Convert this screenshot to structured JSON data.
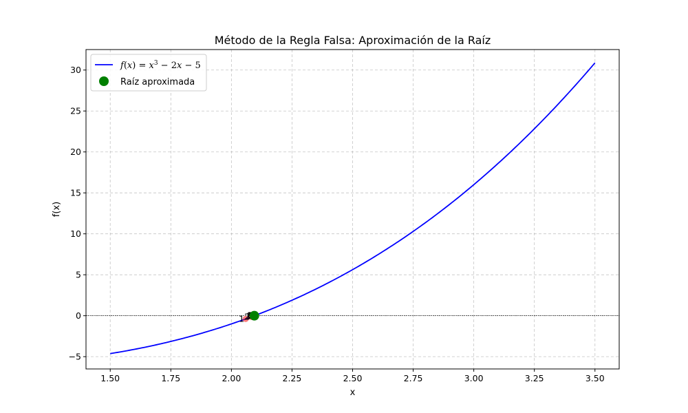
{
  "chart_data": {
    "type": "line",
    "title": "Método de la Regla Falsa: Aproximación de la Raíz",
    "xlabel": "x",
    "ylabel": "f(x)",
    "xlim": [
      1.4,
      3.6
    ],
    "ylim": [
      -6.5,
      32.5
    ],
    "xticks": [
      1.5,
      1.75,
      2.0,
      2.25,
      2.5,
      2.75,
      3.0,
      3.25,
      3.5
    ],
    "xtick_labels": [
      "1.50",
      "1.75",
      "2.00",
      "2.25",
      "2.50",
      "2.75",
      "3.00",
      "3.25",
      "3.50"
    ],
    "yticks": [
      -5,
      0,
      5,
      10,
      15,
      20,
      25,
      30
    ],
    "ytick_labels": [
      "−5",
      "0",
      "5",
      "10",
      "15",
      "20",
      "25",
      "30"
    ],
    "grid": true,
    "legend_position": "upper-left",
    "function": "x^3 - 2x - 5",
    "x_range": [
      1.5,
      3.5
    ],
    "series": [
      {
        "name": "$f(x) = x^3 - 2x - 5$",
        "color": "#0000ff",
        "kind": "line"
      },
      {
        "name": "Raíz aproximada",
        "color": "#008000",
        "kind": "scatter"
      }
    ],
    "iterations": [
      {
        "label": "1",
        "x": 2.0588,
        "y": -0.3908
      },
      {
        "label": "2",
        "x": 2.0813,
        "y": -0.1472
      },
      {
        "label": "3",
        "x": 2.0896,
        "y": -0.0547
      },
      {
        "label": "4",
        "x": 2.0927,
        "y": -0.0202
      },
      {
        "label": "5",
        "x": 2.0939,
        "y": -0.0075
      },
      {
        "label": "6",
        "x": 2.0943,
        "y": -0.0028
      },
      {
        "label": "7",
        "x": 2.0945,
        "y": -0.001
      }
    ],
    "iteration_color": "#ff0000",
    "root": {
      "x": 2.0946,
      "y": 0.0
    },
    "zero_line": {
      "y": 0,
      "color": "#000000"
    }
  }
}
